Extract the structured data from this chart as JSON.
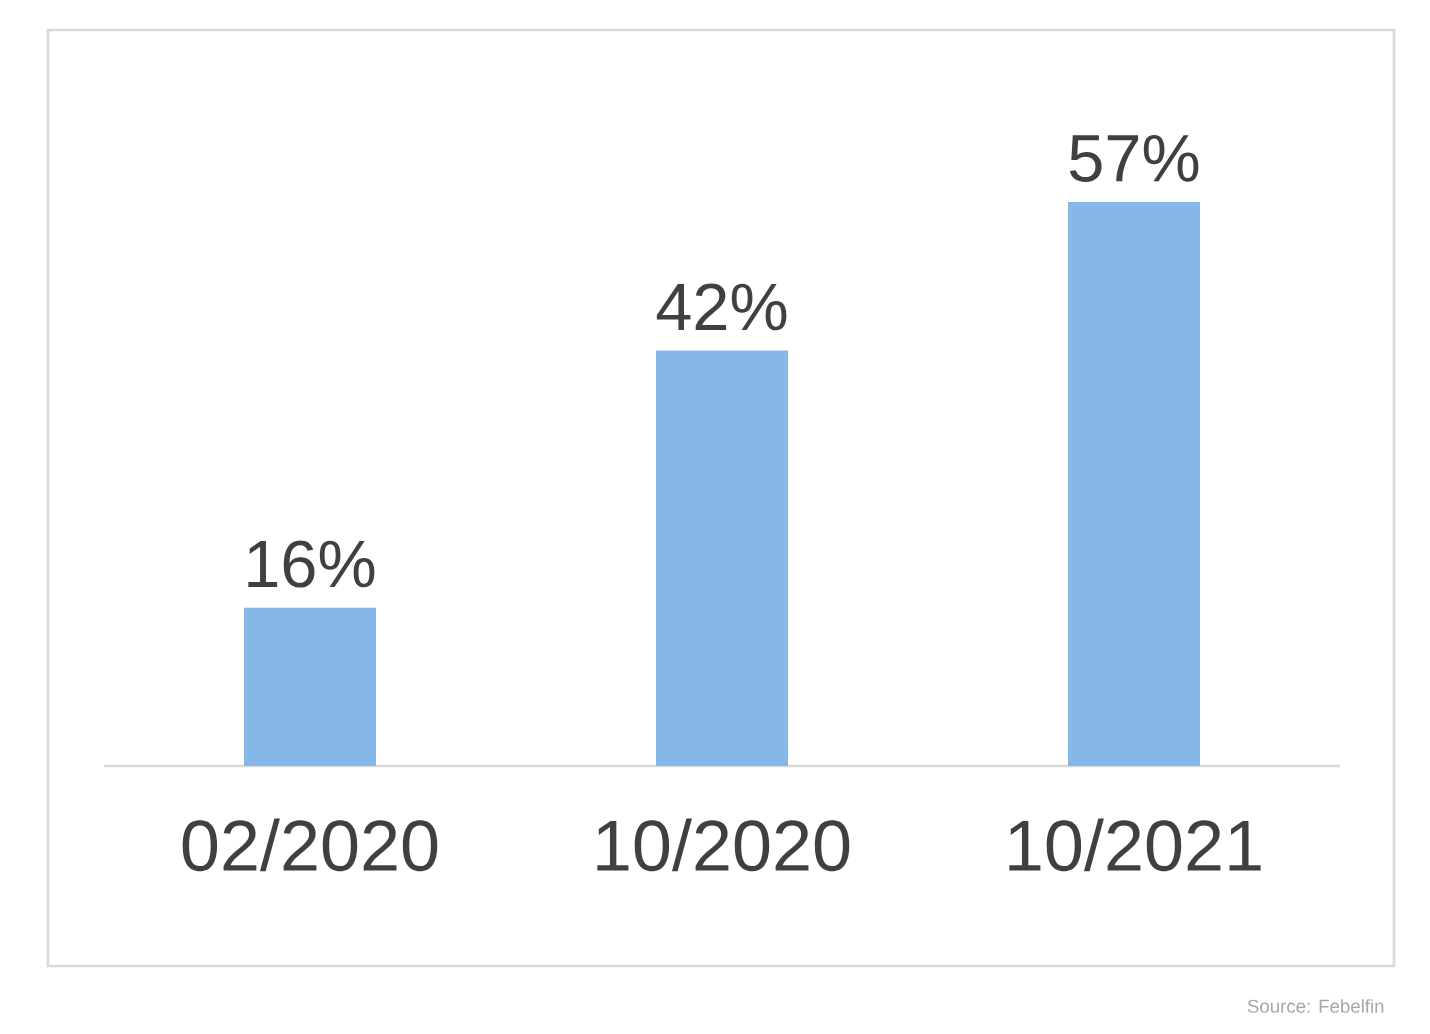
{
  "chart_data": {
    "type": "bar",
    "categories": [
      "02/2020",
      "10/2020",
      "10/2021"
    ],
    "values": [
      16,
      42,
      57
    ],
    "value_labels": [
      "16%",
      "42%",
      "57%"
    ],
    "color": "#85b8e8",
    "annotations": [
      "Source: Febelfin"
    ]
  }
}
